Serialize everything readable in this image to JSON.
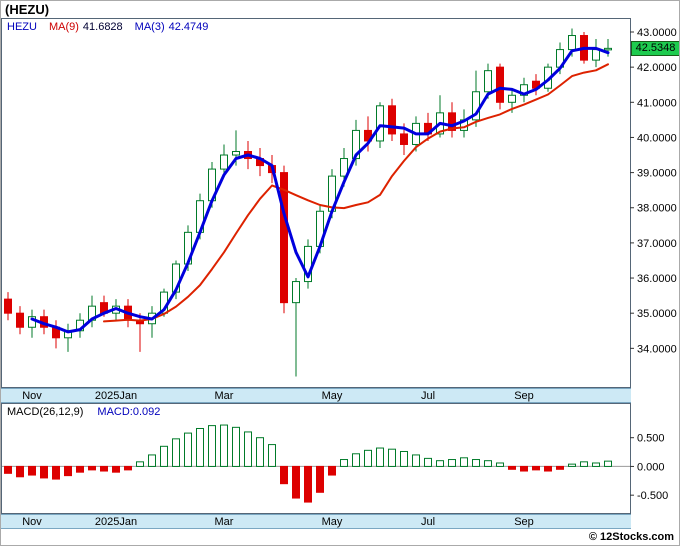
{
  "page": {
    "title": "(HEZU)",
    "copyright": "© 12Stocks.com"
  },
  "price_panel": {
    "legend": {
      "symbol": "HEZU",
      "ma9_label": "MA(9)",
      "ma9_value": "41.6828",
      "ma3_label": "MA(3)",
      "ma3_value": "42.4749"
    },
    "last_price_badge": "42.5348"
  },
  "macd_panel": {
    "legend_label": "MACD(26,12,9)",
    "legend_value": "MACD:0.092"
  },
  "colors": {
    "up": "#007a29",
    "down": "#dd0000",
    "ma9": "#dd2200",
    "ma3": "#0000dd",
    "badge_bg": "#1ecb4f",
    "strip_bg": "#cde9f5",
    "panel_border": "#556677"
  },
  "chart_data": [
    {
      "type": "candlestick",
      "title": "(HEZU)",
      "symbol": "HEZU",
      "overlays": [
        {
          "name": "MA(9)",
          "period": 9,
          "color": "#dd2200",
          "last": 41.6828
        },
        {
          "name": "MA(3)",
          "period": 3,
          "color": "#0000dd",
          "last": 42.4749
        }
      ],
      "last_price": 42.5348,
      "ylim": [
        32.9,
        43.37
      ],
      "y_ticks": [
        {
          "label": "43.0000",
          "value": 43
        },
        {
          "label": "42.0000",
          "value": 42
        },
        {
          "label": "41.0000",
          "value": 41
        },
        {
          "label": "40.0000",
          "value": 40
        },
        {
          "label": "39.0000",
          "value": 39
        },
        {
          "label": "38.0000",
          "value": 38
        },
        {
          "label": "37.0000",
          "value": 37
        },
        {
          "label": "36.0000",
          "value": 36
        },
        {
          "label": "35.0000",
          "value": 35
        },
        {
          "label": "34.0000",
          "value": 34
        }
      ],
      "x_labels": [
        {
          "label": "Nov",
          "index": 2
        },
        {
          "label": "2025Jan",
          "index": 9
        },
        {
          "label": "Mar",
          "index": 18
        },
        {
          "label": "May",
          "index": 27
        },
        {
          "label": "Jul",
          "index": 35
        },
        {
          "label": "Sep",
          "index": 43
        }
      ],
      "candles": [
        [
          35.4,
          35.6,
          34.8,
          35.0
        ],
        [
          35.0,
          35.2,
          34.4,
          34.6
        ],
        [
          34.6,
          35.1,
          34.3,
          34.9
        ],
        [
          34.9,
          35.1,
          34.4,
          34.6
        ],
        [
          34.6,
          34.8,
          34.0,
          34.3
        ],
        [
          34.3,
          34.7,
          33.9,
          34.5
        ],
        [
          34.5,
          35.0,
          34.3,
          34.8
        ],
        [
          34.8,
          35.5,
          34.6,
          35.2
        ],
        [
          35.3,
          35.5,
          34.9,
          35.0
        ],
        [
          35.0,
          35.4,
          34.8,
          35.2
        ],
        [
          35.2,
          35.4,
          34.6,
          34.8
        ],
        [
          34.8,
          35.0,
          33.9,
          34.7
        ],
        [
          34.7,
          35.2,
          34.3,
          35.0
        ],
        [
          35.0,
          35.7,
          34.9,
          35.6
        ],
        [
          35.6,
          36.5,
          35.4,
          36.4
        ],
        [
          36.4,
          37.5,
          36.2,
          37.3
        ],
        [
          37.3,
          38.4,
          37.1,
          38.2
        ],
        [
          38.2,
          39.3,
          38.0,
          39.1
        ],
        [
          39.1,
          39.8,
          38.9,
          39.5
        ],
        [
          39.5,
          40.2,
          39.2,
          39.6
        ],
        [
          39.6,
          39.9,
          39.1,
          39.4
        ],
        [
          39.4,
          39.7,
          38.9,
          39.2
        ],
        [
          39.2,
          39.5,
          38.7,
          39.0
        ],
        [
          39.0,
          39.2,
          35.0,
          35.3
        ],
        [
          35.3,
          36.0,
          33.2,
          35.9
        ],
        [
          35.9,
          37.1,
          35.7,
          36.9
        ],
        [
          36.9,
          38.1,
          36.7,
          37.9
        ],
        [
          37.9,
          39.1,
          37.7,
          38.9
        ],
        [
          38.9,
          39.7,
          38.6,
          39.4
        ],
        [
          39.4,
          40.5,
          39.2,
          40.2
        ],
        [
          40.2,
          40.6,
          39.6,
          39.9
        ],
        [
          39.9,
          41.0,
          39.7,
          40.9
        ],
        [
          40.9,
          41.1,
          39.9,
          40.1
        ],
        [
          40.1,
          40.4,
          39.5,
          39.8
        ],
        [
          39.8,
          40.6,
          39.6,
          40.4
        ],
        [
          40.4,
          40.7,
          39.9,
          40.1
        ],
        [
          40.1,
          41.2,
          40.0,
          40.7
        ],
        [
          40.7,
          41.0,
          40.0,
          40.2
        ],
        [
          40.2,
          40.8,
          40.0,
          40.5
        ],
        [
          40.5,
          41.9,
          40.3,
          41.3
        ],
        [
          41.3,
          42.1,
          41.1,
          41.9
        ],
        [
          42.0,
          42.1,
          40.8,
          41.0
        ],
        [
          41.0,
          41.4,
          40.7,
          41.2
        ],
        [
          41.2,
          41.7,
          41.0,
          41.5
        ],
        [
          41.6,
          41.8,
          41.2,
          41.4
        ],
        [
          41.4,
          42.1,
          41.3,
          42.0
        ],
        [
          42.0,
          42.7,
          41.8,
          42.5
        ],
        [
          42.5,
          43.1,
          42.3,
          42.9
        ],
        [
          42.9,
          43.0,
          42.1,
          42.2
        ],
        [
          42.2,
          42.8,
          42.0,
          42.5
        ],
        [
          42.5,
          42.8,
          42.3,
          42.5348
        ]
      ]
    },
    {
      "type": "bar",
      "name": "MACD(26,12,9)",
      "last_value": 0.092,
      "ylim": [
        -0.81,
        1.086
      ],
      "zero_line": true,
      "y_ticks": [
        {
          "label": "0.500",
          "value": 0.5
        },
        {
          "label": "0.000",
          "value": 0
        },
        {
          "label": "-0.500",
          "value": -0.5
        }
      ],
      "values": [
        -0.12,
        -0.18,
        -0.15,
        -0.2,
        -0.22,
        -0.16,
        -0.1,
        -0.06,
        -0.08,
        -0.1,
        -0.06,
        0.08,
        0.2,
        0.35,
        0.48,
        0.58,
        0.66,
        0.71,
        0.72,
        0.68,
        0.6,
        0.5,
        0.38,
        -0.3,
        -0.55,
        -0.62,
        -0.45,
        -0.15,
        0.12,
        0.22,
        0.28,
        0.32,
        0.3,
        0.26,
        0.2,
        0.14,
        0.1,
        0.12,
        0.15,
        0.12,
        0.1,
        0.06,
        -0.05,
        -0.08,
        -0.06,
        -0.08,
        -0.05,
        0.04,
        0.08,
        0.06,
        0.092
      ]
    }
  ]
}
